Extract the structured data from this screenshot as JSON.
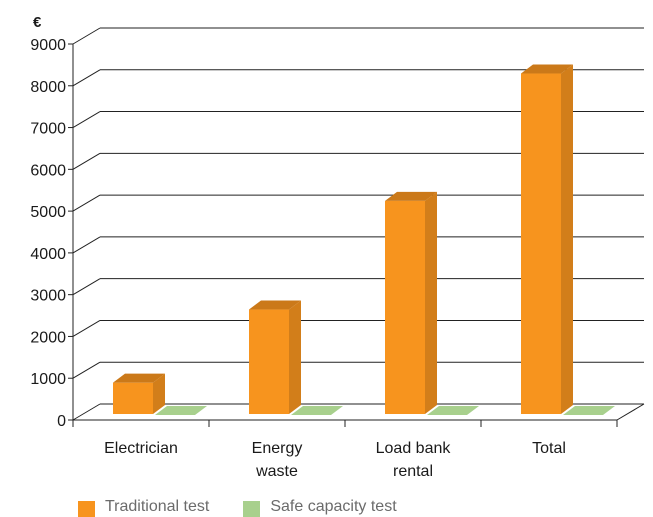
{
  "chart_data": {
    "type": "bar",
    "unit_label": "€",
    "categories": [
      [
        "Electrician"
      ],
      [
        "Energy",
        "waste"
      ],
      [
        "Load bank",
        "rental"
      ],
      [
        "Total"
      ]
    ],
    "series": [
      {
        "name": "Traditional test",
        "color": "#F7941E",
        "values": [
          750,
          2500,
          5100,
          8150
        ]
      },
      {
        "name": "Safe capacity test",
        "color": "#A8D08D",
        "values": [
          0,
          0,
          0,
          0
        ]
      }
    ],
    "ylim": [
      0,
      9000
    ],
    "yticks": [
      0,
      1000,
      2000,
      3000,
      4000,
      5000,
      6000,
      7000,
      8000,
      9000
    ],
    "grid": true,
    "legend_position": "bottom-left"
  }
}
